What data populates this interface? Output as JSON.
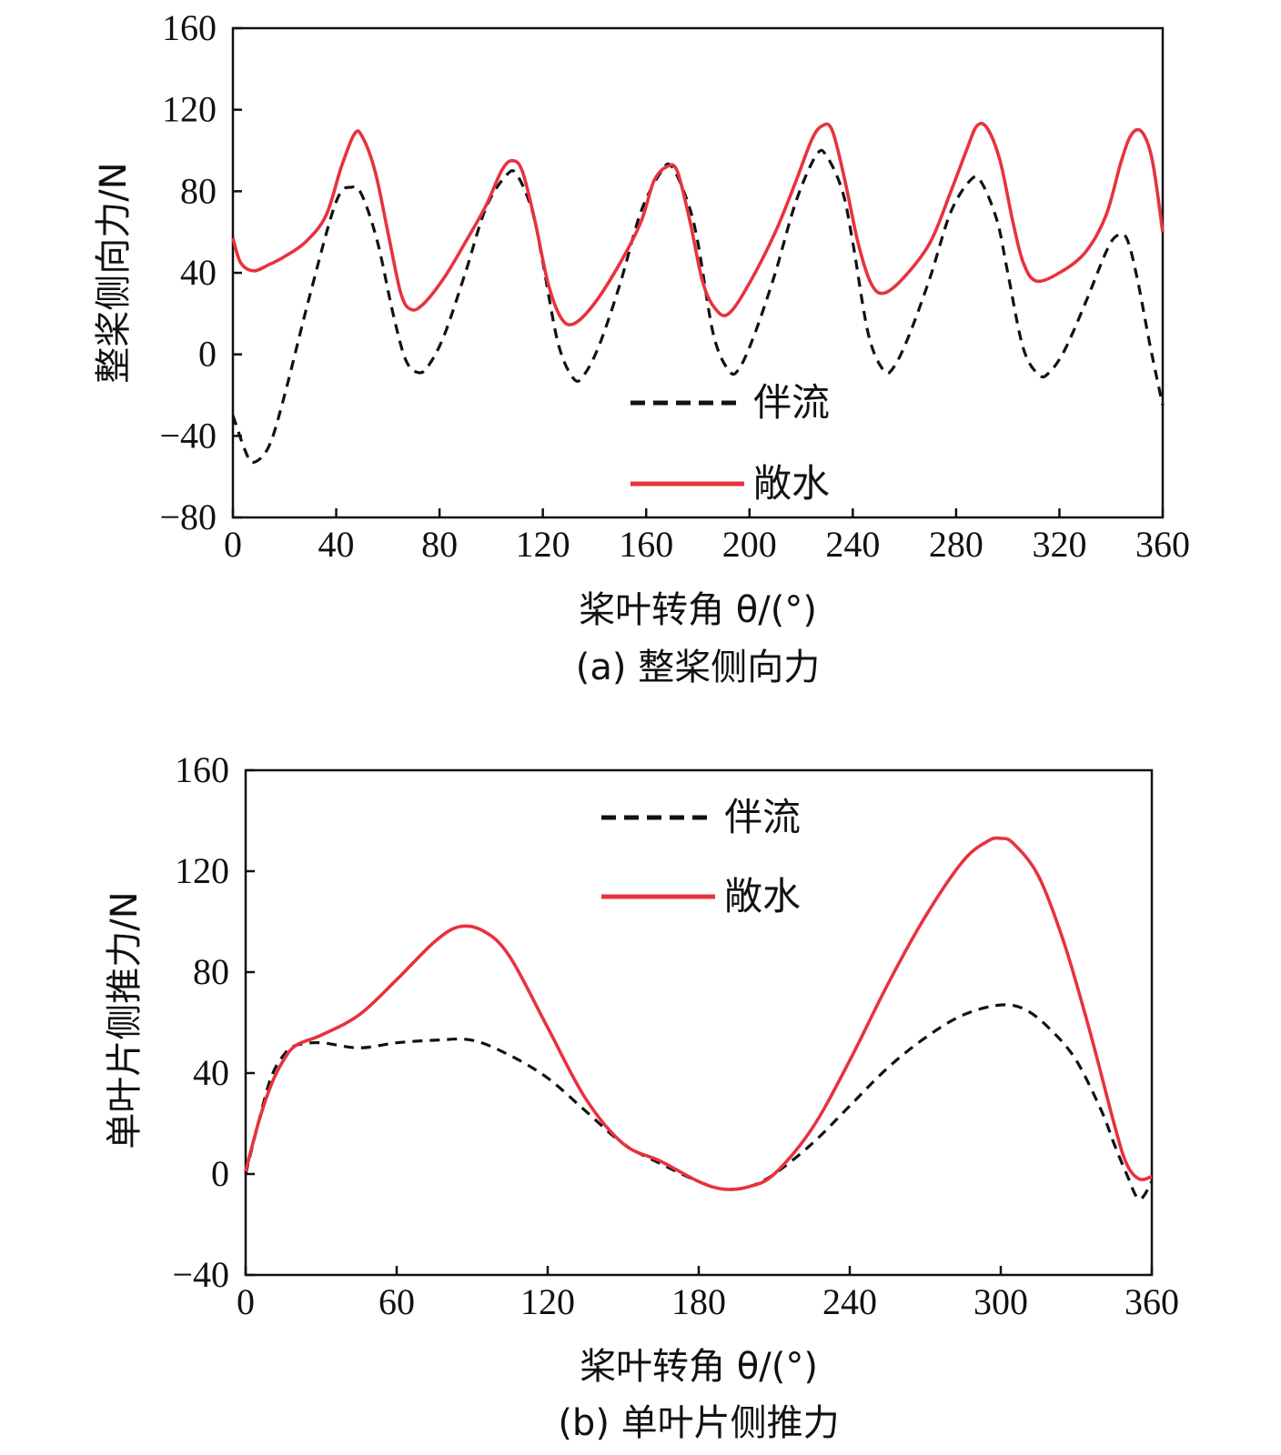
{
  "chart_data": [
    {
      "type": "line",
      "caption": "(a) 整桨侧向力",
      "xlabel": "桨叶转角 θ/(°)",
      "ylabel": "整桨侧向力/N",
      "xlim": [
        0,
        360
      ],
      "ylim": [
        -80,
        160
      ],
      "xticks": [
        "0",
        "40",
        "80",
        "120",
        "160",
        "200",
        "240",
        "280",
        "320",
        "360"
      ],
      "yticks": [
        "160",
        "120",
        "80",
        "40",
        "0",
        "−40",
        "−80"
      ],
      "legend_position": "lower-center",
      "series": [
        {
          "name": "伴流",
          "style": "dashed",
          "color": "#111111",
          "x": [
            0,
            5,
            8,
            14,
            20,
            30,
            40,
            46,
            50,
            56,
            62,
            67,
            72,
            76,
            82,
            90,
            98,
            106,
            110,
            116,
            120,
            126,
            132,
            136,
            142,
            150,
            158,
            166,
            170,
            176,
            180,
            186,
            192,
            196,
            202,
            210,
            218,
            226,
            230,
            236,
            240,
            246,
            252,
            256,
            262,
            270,
            278,
            286,
            290,
            296,
            300,
            306,
            312,
            316,
            322,
            330,
            338,
            342,
            346,
            350,
            355,
            360
          ],
          "y": [
            -30,
            -48,
            -53,
            -45,
            -20,
            30,
            75,
            82,
            78,
            55,
            20,
            -3,
            -9,
            -5,
            10,
            40,
            72,
            88,
            88,
            70,
            45,
            5,
            -12,
            -10,
            5,
            35,
            70,
            90,
            92,
            75,
            55,
            10,
            -8,
            -7,
            10,
            40,
            75,
            98,
            97,
            80,
            55,
            10,
            -8,
            -6,
            10,
            38,
            70,
            86,
            84,
            65,
            40,
            3,
            -10,
            -9,
            2,
            25,
            50,
            58,
            57,
            38,
            5,
            -25
          ]
        },
        {
          "name": "敞水",
          "style": "solid",
          "color": "#e8323e",
          "x": [
            0,
            3,
            8,
            14,
            20,
            28,
            36,
            42,
            47,
            50,
            55,
            60,
            65,
            69,
            74,
            82,
            90,
            98,
            104,
            108,
            112,
            117,
            122,
            127,
            132,
            140,
            150,
            158,
            163,
            168,
            172,
            177,
            182,
            187,
            192,
            200,
            210,
            218,
            224,
            228,
            232,
            237,
            242,
            247,
            252,
            260,
            270,
            278,
            284,
            288,
            292,
            297,
            302,
            306,
            311,
            320,
            330,
            338,
            344,
            348,
            352,
            356,
            360
          ],
          "y": [
            57,
            45,
            41,
            44,
            48,
            55,
            68,
            92,
            108,
            107,
            90,
            60,
            30,
            22,
            25,
            38,
            55,
            73,
            90,
            95,
            90,
            65,
            35,
            18,
            15,
            25,
            45,
            65,
            85,
            92,
            90,
            65,
            35,
            22,
            20,
            35,
            60,
            85,
            105,
            112,
            110,
            85,
            55,
            35,
            30,
            38,
            55,
            80,
            100,
            112,
            111,
            95,
            65,
            45,
            36,
            40,
            50,
            68,
            95,
            108,
            109,
            95,
            60
          ]
        }
      ]
    },
    {
      "type": "line",
      "caption": "(b) 单叶片侧推力",
      "xlabel": "桨叶转角 θ/(°)",
      "ylabel": "单叶片侧推力/N",
      "xlim": [
        0,
        360
      ],
      "ylim": [
        -40,
        160
      ],
      "xticks": [
        "0",
        "60",
        "120",
        "180",
        "240",
        "300",
        "360"
      ],
      "yticks": [
        "160",
        "120",
        "80",
        "40",
        "0",
        "−40"
      ],
      "legend_position": "upper-center",
      "series": [
        {
          "name": "伴流",
          "style": "dashed",
          "color": "#111111",
          "x": [
            0,
            5,
            10,
            15,
            20,
            30,
            45,
            60,
            75,
            90,
            105,
            120,
            135,
            150,
            165,
            180,
            190,
            200,
            210,
            225,
            240,
            255,
            270,
            285,
            300,
            310,
            320,
            330,
            340,
            345,
            350,
            355,
            360
          ],
          "y": [
            0,
            20,
            38,
            47,
            51,
            52,
            50,
            52,
            53,
            53,
            47,
            38,
            25,
            12,
            4,
            -3,
            -6,
            -5,
            0,
            12,
            27,
            42,
            54,
            63,
            67,
            65,
            57,
            45,
            25,
            12,
            0,
            -10,
            -3
          ]
        },
        {
          "name": "敞水",
          "style": "solid",
          "color": "#e8323e",
          "x": [
            0,
            5,
            10,
            15,
            20,
            30,
            45,
            60,
            75,
            85,
            95,
            105,
            120,
            135,
            150,
            165,
            180,
            190,
            200,
            210,
            225,
            240,
            255,
            270,
            285,
            295,
            300,
            305,
            315,
            325,
            335,
            345,
            350,
            355,
            360
          ],
          "y": [
            1,
            20,
            35,
            45,
            51,
            55,
            63,
            77,
            92,
            98,
            96,
            86,
            58,
            30,
            12,
            5,
            -3,
            -6,
            -5,
            0,
            18,
            45,
            75,
            102,
            124,
            132,
            133,
            131,
            118,
            92,
            58,
            20,
            4,
            -2,
            -1
          ]
        }
      ]
    }
  ]
}
